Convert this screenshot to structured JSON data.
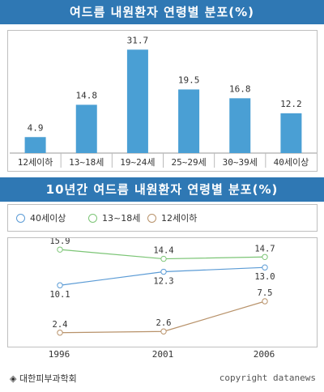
{
  "titles": {
    "chart1": "여드름 내원환자 연령별 분포(%)",
    "chart2": "10년간 여드름 내원환자 연령별 분포(%)"
  },
  "legend": [
    {
      "label": "40세이상",
      "color": "#5b9bd5"
    },
    {
      "label": "13~18세",
      "color": "#7cc576"
    },
    {
      "label": "12세이하",
      "color": "#b8926a"
    }
  ],
  "footer": {
    "source": "◈ 대한피부과학회",
    "copyright": "copyright datanews"
  },
  "colors": {
    "banner": "#2f78b4",
    "bar": "#4a9fd4"
  },
  "chart_data": [
    {
      "type": "bar",
      "title": "여드름 내원환자 연령별 분포(%)",
      "categories": [
        "12세이하",
        "13~18세",
        "19~24세",
        "25~29세",
        "30~39세",
        "40세이상"
      ],
      "values": [
        4.9,
        14.8,
        31.7,
        19.5,
        16.8,
        12.2
      ],
      "value_labels": [
        "4.9",
        "14.8",
        "31.7",
        "19.5",
        "16.8",
        "12.2"
      ],
      "ylim": [
        0,
        35
      ],
      "grid": false
    },
    {
      "type": "line",
      "title": "10년간 여드름 내원환자 연령별 분포(%)",
      "x": [
        "1996",
        "2001",
        "2006"
      ],
      "series": [
        {
          "name": "40세이상",
          "values": [
            10.1,
            12.3,
            13.0
          ],
          "labels": [
            "10.1",
            "12.3",
            "13.0"
          ],
          "color": "#5b9bd5",
          "label_position": "below"
        },
        {
          "name": "13~18세",
          "values": [
            15.9,
            14.4,
            14.7
          ],
          "labels": [
            "15.9",
            "14.4",
            "14.7"
          ],
          "color": "#7cc576",
          "label_position": "above"
        },
        {
          "name": "12세이하",
          "values": [
            2.4,
            2.6,
            7.5
          ],
          "labels": [
            "2.4",
            "2.6",
            "7.5"
          ],
          "color": "#b8926a",
          "label_position": "above"
        }
      ],
      "ylim": [
        0,
        17.5
      ],
      "grid": false,
      "legend_position": "top"
    }
  ]
}
